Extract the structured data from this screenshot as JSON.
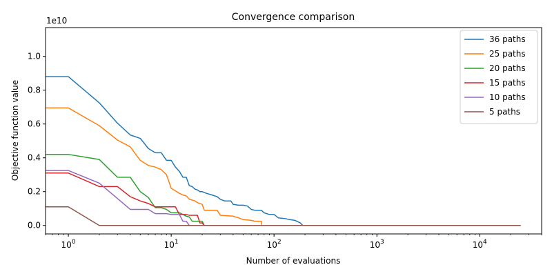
{
  "chart_data": {
    "type": "line",
    "title": "Convergence comparison",
    "xlabel": "Number of evaluations",
    "ylabel": "Objective function value",
    "x_scale": "log",
    "xlim": [
      0.6,
      40000
    ],
    "ylim": [
      -0.05,
      1.17
    ],
    "y_offset_label": "1e10",
    "y_ticks": [
      0.0,
      0.2,
      0.4,
      0.6,
      0.8,
      1.0
    ],
    "y_tick_labels": [
      "0.0",
      "0.2",
      "0.4",
      "0.6",
      "0.8",
      "1.0"
    ],
    "x_ticks": [
      1,
      10,
      100,
      1000,
      10000
    ],
    "x_tick_base": "10",
    "x_tick_exps": [
      "0",
      "1",
      "2",
      "3",
      "4"
    ],
    "grid": false,
    "legend_placement": "top-right",
    "series": [
      {
        "name": "36 paths",
        "color": "#1f77b4",
        "points": [
          [
            0.6,
            0.88
          ],
          [
            1,
            0.88
          ],
          [
            2,
            0.725
          ],
          [
            3,
            0.605
          ],
          [
            4,
            0.535
          ],
          [
            5,
            0.515
          ],
          [
            6,
            0.455
          ],
          [
            7,
            0.43
          ],
          [
            8,
            0.43
          ],
          [
            9,
            0.385
          ],
          [
            10,
            0.385
          ],
          [
            11,
            0.345
          ],
          [
            12,
            0.32
          ],
          [
            13,
            0.285
          ],
          [
            14,
            0.285
          ],
          [
            15,
            0.235
          ],
          [
            16,
            0.23
          ],
          [
            17,
            0.215
          ],
          [
            18,
            0.21
          ],
          [
            19,
            0.2
          ],
          [
            20,
            0.2
          ],
          [
            22,
            0.19
          ],
          [
            25,
            0.18
          ],
          [
            28,
            0.17
          ],
          [
            30,
            0.155
          ],
          [
            33,
            0.145
          ],
          [
            38,
            0.145
          ],
          [
            40,
            0.125
          ],
          [
            45,
            0.12
          ],
          [
            50,
            0.12
          ],
          [
            55,
            0.115
          ],
          [
            60,
            0.095
          ],
          [
            65,
            0.09
          ],
          [
            75,
            0.09
          ],
          [
            80,
            0.075
          ],
          [
            90,
            0.065
          ],
          [
            100,
            0.065
          ],
          [
            110,
            0.045
          ],
          [
            130,
            0.04
          ],
          [
            140,
            0.035
          ],
          [
            160,
            0.03
          ],
          [
            180,
            0.015
          ],
          [
            190,
            0.0
          ],
          [
            25000,
            0.0
          ]
        ]
      },
      {
        "name": "25 paths",
        "color": "#ff7f0e",
        "points": [
          [
            0.6,
            0.695
          ],
          [
            1,
            0.695
          ],
          [
            2,
            0.59
          ],
          [
            3,
            0.505
          ],
          [
            4,
            0.465
          ],
          [
            5,
            0.385
          ],
          [
            6,
            0.355
          ],
          [
            7,
            0.345
          ],
          [
            8,
            0.33
          ],
          [
            9,
            0.3
          ],
          [
            10,
            0.22
          ],
          [
            12,
            0.19
          ],
          [
            13,
            0.18
          ],
          [
            14,
            0.175
          ],
          [
            15,
            0.155
          ],
          [
            17,
            0.145
          ],
          [
            18,
            0.135
          ],
          [
            20,
            0.125
          ],
          [
            21,
            0.09
          ],
          [
            28,
            0.09
          ],
          [
            30,
            0.06
          ],
          [
            40,
            0.055
          ],
          [
            45,
            0.045
          ],
          [
            50,
            0.035
          ],
          [
            60,
            0.03
          ],
          [
            65,
            0.025
          ],
          [
            75,
            0.025
          ],
          [
            76,
            0.0
          ],
          [
            25000,
            0.0
          ]
        ]
      },
      {
        "name": "20 paths",
        "color": "#2ca02c",
        "points": [
          [
            0.6,
            0.42
          ],
          [
            1,
            0.42
          ],
          [
            2,
            0.39
          ],
          [
            3,
            0.285
          ],
          [
            4,
            0.285
          ],
          [
            5,
            0.2
          ],
          [
            6,
            0.165
          ],
          [
            7,
            0.105
          ],
          [
            8,
            0.105
          ],
          [
            9,
            0.095
          ],
          [
            10,
            0.075
          ],
          [
            12,
            0.075
          ],
          [
            13,
            0.065
          ],
          [
            14,
            0.055
          ],
          [
            15,
            0.05
          ],
          [
            16,
            0.025
          ],
          [
            20,
            0.025
          ],
          [
            21,
            0.0
          ],
          [
            25000,
            0.0
          ]
        ]
      },
      {
        "name": "15 paths",
        "color": "#d62728",
        "points": [
          [
            0.6,
            0.31
          ],
          [
            1,
            0.31
          ],
          [
            2,
            0.23
          ],
          [
            3,
            0.23
          ],
          [
            4,
            0.17
          ],
          [
            5,
            0.145
          ],
          [
            6,
            0.13
          ],
          [
            7,
            0.11
          ],
          [
            8,
            0.11
          ],
          [
            11,
            0.11
          ],
          [
            12,
            0.065
          ],
          [
            14,
            0.065
          ],
          [
            15,
            0.06
          ],
          [
            18,
            0.06
          ],
          [
            19,
            0.015
          ],
          [
            20,
            0.015
          ],
          [
            21,
            0.0
          ],
          [
            25000,
            0.0
          ]
        ]
      },
      {
        "name": "10 paths",
        "color": "#9467bd",
        "points": [
          [
            0.6,
            0.325
          ],
          [
            1,
            0.325
          ],
          [
            2,
            0.25
          ],
          [
            4,
            0.095
          ],
          [
            6,
            0.095
          ],
          [
            7,
            0.07
          ],
          [
            9,
            0.07
          ],
          [
            10,
            0.065
          ],
          [
            12,
            0.065
          ],
          [
            13,
            0.025
          ],
          [
            14,
            0.025
          ],
          [
            15,
            0.0
          ],
          [
            25000,
            0.0
          ]
        ]
      },
      {
        "name": "5 paths",
        "color": "#8c564b",
        "points": [
          [
            0.6,
            0.11
          ],
          [
            1,
            0.11
          ],
          [
            2,
            0.0
          ],
          [
            25000,
            0.0
          ]
        ]
      }
    ]
  }
}
